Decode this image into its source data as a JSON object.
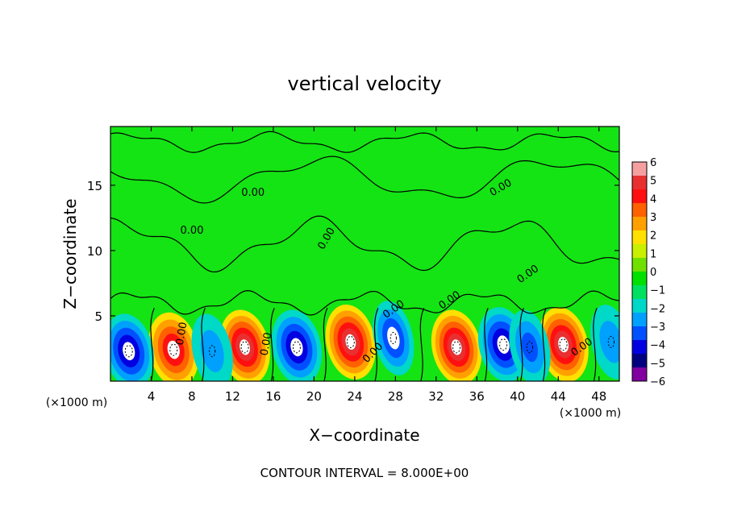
{
  "chart_data": {
    "type": "heatmap",
    "title": "vertical velocity",
    "xlabel": "X−coordinate",
    "ylabel": "Z−coordinate",
    "x_scale_note_left": "(×1000 m)",
    "x_scale_note_right": "(×1000 m)",
    "footer": "CONTOUR INTERVAL = 8.000E+00",
    "xlim": [
      0,
      50
    ],
    "ylim": [
      0,
      19.5
    ],
    "xticks": [
      4,
      8,
      12,
      16,
      20,
      24,
      28,
      32,
      36,
      40,
      44,
      48
    ],
    "yticks": [
      5,
      10,
      15
    ],
    "contour_label": "0.00",
    "colorbar": {
      "min": -6,
      "max": 6,
      "ticks": [
        "6",
        "5",
        "4",
        "3",
        "2",
        "1",
        "0",
        "−1",
        "−2",
        "−3",
        "−4",
        "−5",
        "−6"
      ],
      "colors": [
        "#f4a0a0",
        "#e83030",
        "#ff1010",
        "#ff6000",
        "#ffa000",
        "#ffe000",
        "#c8f000",
        "#70e000",
        "#00e000",
        "#00e060",
        "#00d8c8",
        "#00a0ff",
        "#0050ff",
        "#0000e0",
        "#000080",
        "#8000a0"
      ]
    },
    "updraft_cores": [
      {
        "x": 6.2,
        "z": 2.4,
        "w": 8
      },
      {
        "x": 13.2,
        "z": 2.6,
        "w": 9
      },
      {
        "x": 23.6,
        "z": 3.0,
        "w": 9
      },
      {
        "x": 34.0,
        "z": 2.6,
        "w": 9
      },
      {
        "x": 44.5,
        "z": 2.8,
        "w": 9
      }
    ],
    "downdraft_cores": [
      {
        "x": 1.8,
        "z": 2.3,
        "w": -7
      },
      {
        "x": 10.0,
        "z": 2.3,
        "w": -3
      },
      {
        "x": 18.3,
        "z": 2.6,
        "w": -8
      },
      {
        "x": 27.8,
        "z": 3.3,
        "w": -6
      },
      {
        "x": 38.6,
        "z": 2.8,
        "w": -7
      },
      {
        "x": 41.2,
        "z": 2.6,
        "w": -4
      },
      {
        "x": 49.2,
        "z": 3.0,
        "w": -3
      }
    ]
  }
}
